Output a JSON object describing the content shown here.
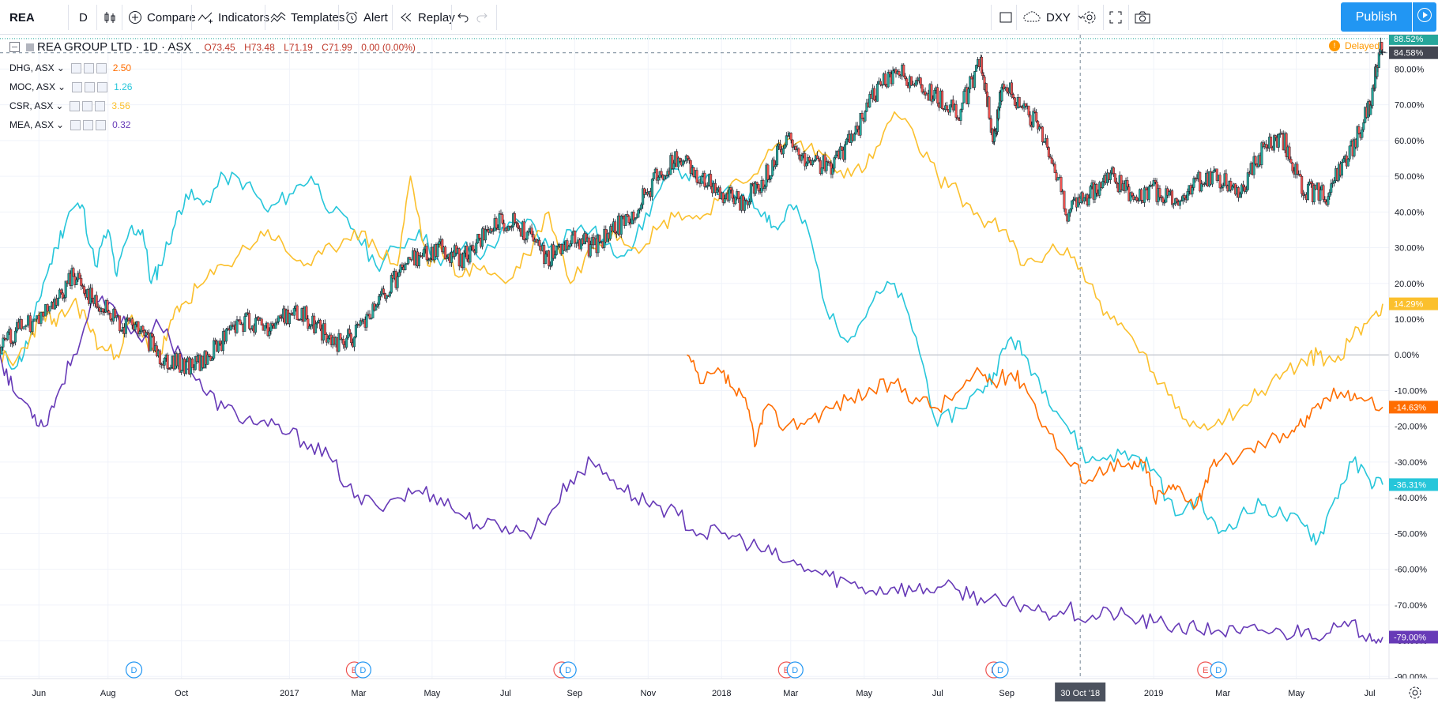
{
  "toolbar": {
    "symbol": "REA",
    "interval": "D",
    "compare": "Compare",
    "indicators": "Indicators",
    "templates": "Templates",
    "alert": "Alert",
    "replay": "Replay",
    "compare_symbol": "DXY",
    "publish": "Publish"
  },
  "legend": {
    "main_title": "REA GROUP LTD · 1D · ASX",
    "open": "O73.45",
    "high": "H73.48",
    "low": "L71.19",
    "close": "C71.99",
    "change": "0.00 (0.00%)",
    "delayed": "Delayed",
    "series": [
      {
        "label": "DHG, ASX",
        "value": "2.50",
        "color": "#ff6d00"
      },
      {
        "label": "MOC, ASX",
        "value": "1.26",
        "color": "#26c6da"
      },
      {
        "label": "CSR, ASX",
        "value": "3.56",
        "color": "#fbc02d"
      },
      {
        "label": "MEA, ASX",
        "value": "0.32",
        "color": "#673ab7"
      }
    ]
  },
  "crosshair_date": "30 Oct '18",
  "colors": {
    "up": "#26a69a",
    "down": "#ef5350",
    "dhg": "#ff6d00",
    "moc": "#26c6da",
    "csr": "#fbc02d",
    "mea": "#673ab7",
    "accent": "#2196f3"
  },
  "chart_data": {
    "type": "line",
    "xlabel": "",
    "ylabel": "",
    "ylim": [
      -90,
      90
    ],
    "y_ticks": [
      80,
      70,
      60,
      50,
      40,
      30,
      20,
      10,
      0,
      -10,
      -20,
      -30,
      -40,
      -50,
      -60,
      -70,
      -80,
      -90
    ],
    "y_tick_labels": [
      "80.00%",
      "70.00%",
      "60.00%",
      "50.00%",
      "40.00%",
      "30.00%",
      "20.00%",
      "10.00%",
      "0.00%",
      "-10.00%",
      "-20.00%",
      "-30.00%",
      "-40.00%",
      "-50.00%",
      "-60.00%",
      "-70.00%",
      "-80.00%",
      "-90.00%"
    ],
    "x_range": [
      2016.33,
      2019.53
    ],
    "x_ticks": [
      {
        "label": "Jun",
        "t": 2016.42
      },
      {
        "label": "Aug",
        "t": 2016.58
      },
      {
        "label": "Oct",
        "t": 2016.75
      },
      {
        "label": "2017",
        "t": 2017.0
      },
      {
        "label": "Mar",
        "t": 2017.16
      },
      {
        "label": "May",
        "t": 2017.33
      },
      {
        "label": "Jul",
        "t": 2017.5
      },
      {
        "label": "Sep",
        "t": 2017.66
      },
      {
        "label": "Nov",
        "t": 2017.83
      },
      {
        "label": "2018",
        "t": 2018.0
      },
      {
        "label": "Mar",
        "t": 2018.16
      },
      {
        "label": "May",
        "t": 2018.33
      },
      {
        "label": "Jul",
        "t": 2018.5
      },
      {
        "label": "Sep",
        "t": 2018.66
      },
      {
        "label": "2019",
        "t": 2019.0
      },
      {
        "label": "Mar",
        "t": 2019.16
      },
      {
        "label": "May",
        "t": 2019.33
      },
      {
        "label": "Jul",
        "t": 2019.5
      }
    ],
    "crosshair_t": 2018.83,
    "crosshair_y": 84.58,
    "last_labels": [
      {
        "text": "88.52%",
        "value": 88.52,
        "color": "#26a69a"
      },
      {
        "text": "84.58%",
        "value": 84.58,
        "color": "#434651"
      },
      {
        "text": "14.29%",
        "value": 14.29,
        "color": "#fbc02d"
      },
      {
        "text": "-14.63%",
        "value": -14.63,
        "color": "#ff6d00"
      },
      {
        "text": "-36.31%",
        "value": -36.31,
        "color": "#26c6da"
      },
      {
        "text": "-79.00%",
        "value": -79.0,
        "color": "#673ab7"
      }
    ],
    "events": [
      {
        "type": "D",
        "t": 2016.64
      },
      {
        "type": "E",
        "t": 2017.15
      },
      {
        "type": "D",
        "t": 2017.17
      },
      {
        "type": "E",
        "t": 2017.63
      },
      {
        "type": "D",
        "t": 2017.645
      },
      {
        "type": "E",
        "t": 2018.15
      },
      {
        "type": "D",
        "t": 2018.17
      },
      {
        "type": "E",
        "t": 2018.63
      },
      {
        "type": "D",
        "t": 2018.645
      },
      {
        "type": "E",
        "t": 2019.12
      },
      {
        "type": "D",
        "t": 2019.15
      }
    ],
    "series": [
      {
        "name": "REA",
        "kind": "candles",
        "x": [
          2016.33,
          2016.38,
          2016.45,
          2016.5,
          2016.55,
          2016.6,
          2016.65,
          2016.7,
          2016.75,
          2016.8,
          2016.85,
          2016.9,
          2016.95,
          2017.0,
          2017.05,
          2017.1,
          2017.15,
          2017.2,
          2017.25,
          2017.3,
          2017.35,
          2017.4,
          2017.45,
          2017.5,
          2017.55,
          2017.6,
          2017.65,
          2017.7,
          2017.75,
          2017.8,
          2017.85,
          2017.9,
          2017.95,
          2018.0,
          2018.05,
          2018.1,
          2018.15,
          2018.2,
          2018.25,
          2018.3,
          2018.35,
          2018.4,
          2018.45,
          2018.5,
          2018.55,
          2018.6,
          2018.63,
          2018.65,
          2018.7,
          2018.75,
          2018.8,
          2018.85,
          2018.9,
          2018.95,
          2019.0,
          2019.05,
          2019.1,
          2019.15,
          2019.2,
          2019.25,
          2019.3,
          2019.35,
          2019.4,
          2019.45,
          2019.5,
          2019.53
        ],
        "y": [
          2,
          8,
          12,
          23,
          15,
          10,
          7,
          0,
          -3,
          -2,
          5,
          10,
          8,
          12,
          10,
          3,
          5,
          13,
          22,
          28,
          30,
          27,
          33,
          38,
          34,
          27,
          33,
          30,
          35,
          40,
          50,
          55,
          50,
          45,
          43,
          50,
          60,
          55,
          52,
          60,
          72,
          80,
          75,
          72,
          68,
          82,
          60,
          75,
          70,
          60,
          40,
          45,
          50,
          45,
          46,
          43,
          48,
          50,
          45,
          57,
          60,
          46,
          45,
          55,
          70,
          88.52
        ]
      },
      {
        "name": "MOC",
        "kind": "line",
        "color": "#26c6da",
        "x": [
          2016.33,
          2016.37,
          2016.4,
          2016.43,
          2016.46,
          2016.49,
          2016.52,
          2016.55,
          2016.58,
          2016.6,
          2016.63,
          2016.66,
          2016.68,
          2016.7,
          2016.73,
          2016.76,
          2016.8,
          2016.85,
          2016.9,
          2016.95,
          2017.0,
          2017.05,
          2017.1,
          2017.15,
          2017.2,
          2017.25,
          2017.3,
          2017.35,
          2017.4,
          2017.45,
          2017.5,
          2017.55,
          2017.6,
          2017.65,
          2017.7,
          2017.75,
          2017.8,
          2017.85,
          2017.9,
          2017.95,
          2018.0,
          2018.05,
          2018.1,
          2018.13,
          2018.16,
          2018.2,
          2018.25,
          2018.3,
          2018.35,
          2018.4,
          2018.45,
          2018.5,
          2018.55,
          2018.6,
          2018.63,
          2018.67,
          2018.7,
          2018.75,
          2018.8,
          2018.85,
          2018.9,
          2018.95,
          2019.0,
          2019.05,
          2019.1,
          2019.15,
          2019.2,
          2019.25,
          2019.3,
          2019.35,
          2019.38,
          2019.42,
          2019.46,
          2019.5,
          2019.53
        ],
        "y": [
          0,
          -3,
          5,
          20,
          30,
          40,
          42,
          25,
          35,
          22,
          35,
          35,
          20,
          25,
          35,
          45,
          42,
          50,
          48,
          40,
          45,
          50,
          40,
          35,
          25,
          30,
          35,
          25,
          30,
          28,
          35,
          38,
          30,
          35,
          35,
          28,
          32,
          45,
          52,
          50,
          45,
          45,
          40,
          35,
          42,
          35,
          10,
          5,
          15,
          20,
          5,
          -20,
          -15,
          -10,
          -5,
          5,
          0,
          -10,
          -20,
          -30,
          -28,
          -28,
          -32,
          -45,
          -40,
          -50,
          -45,
          -42,
          -45,
          -48,
          -52,
          -40,
          -30,
          -35,
          -36.31
        ]
      },
      {
        "name": "CSR",
        "kind": "line",
        "color": "#fbc02d",
        "x": [
          2016.33,
          2016.36,
          2016.4,
          2016.43,
          2016.46,
          2016.5,
          2016.53,
          2016.56,
          2016.6,
          2016.63,
          2016.66,
          2016.7,
          2016.73,
          2016.76,
          2016.8,
          2016.85,
          2016.9,
          2016.95,
          2017.0,
          2017.05,
          2017.1,
          2017.15,
          2017.2,
          2017.25,
          2017.28,
          2017.32,
          2017.35,
          2017.4,
          2017.45,
          2017.5,
          2017.55,
          2017.6,
          2017.65,
          2017.7,
          2017.75,
          2017.8,
          2017.85,
          2017.9,
          2017.95,
          2018.0,
          2018.05,
          2018.1,
          2018.15,
          2018.2,
          2018.25,
          2018.3,
          2018.35,
          2018.4,
          2018.45,
          2018.5,
          2018.55,
          2018.6,
          2018.65,
          2018.7,
          2018.75,
          2018.8,
          2018.85,
          2018.9,
          2018.95,
          2019.0,
          2019.05,
          2019.1,
          2019.15,
          2019.2,
          2019.25,
          2019.3,
          2019.35,
          2019.38,
          2019.42,
          2019.46,
          2019.5,
          2019.53
        ],
        "y": [
          0,
          -3,
          5,
          12,
          8,
          15,
          10,
          2,
          0,
          10,
          5,
          0,
          10,
          15,
          20,
          25,
          30,
          35,
          28,
          25,
          30,
          35,
          30,
          25,
          50,
          25,
          30,
          22,
          25,
          20,
          28,
          40,
          20,
          30,
          35,
          30,
          35,
          40,
          38,
          45,
          48,
          55,
          60,
          58,
          55,
          50,
          55,
          68,
          60,
          50,
          45,
          38,
          35,
          25,
          28,
          30,
          20,
          10,
          5,
          -5,
          -15,
          -20,
          -18,
          -15,
          -10,
          -5,
          -2,
          0,
          -2,
          5,
          10,
          14.29
        ]
      },
      {
        "name": "DHG",
        "kind": "line",
        "color": "#ff6d00",
        "x": [
          2017.92,
          2017.95,
          2018.0,
          2018.03,
          2018.06,
          2018.08,
          2018.1,
          2018.15,
          2018.2,
          2018.25,
          2018.3,
          2018.35,
          2018.4,
          2018.45,
          2018.5,
          2018.55,
          2018.6,
          2018.63,
          2018.67,
          2018.7,
          2018.75,
          2018.8,
          2018.85,
          2018.9,
          2018.95,
          2018.98,
          2019.0,
          2019.03,
          2019.06,
          2019.1,
          2019.12,
          2019.15,
          2019.2,
          2019.25,
          2019.3,
          2019.33,
          2019.36,
          2019.4,
          2019.45,
          2019.48,
          2019.53
        ],
        "y": [
          0,
          -8,
          -5,
          -10,
          -15,
          -25,
          -15,
          -20,
          -18,
          -15,
          -12,
          -10,
          -8,
          -12,
          -15,
          -10,
          -5,
          -8,
          -5,
          -8,
          -20,
          -30,
          -35,
          -30,
          -32,
          -30,
          -40,
          -38,
          -37,
          -42,
          -35,
          -30,
          -28,
          -25,
          -22,
          -20,
          -18,
          -12,
          -10,
          -12,
          -14.63
        ]
      },
      {
        "name": "MEA",
        "kind": "line",
        "color": "#673ab7",
        "x": [
          2016.33,
          2016.36,
          2016.4,
          2016.43,
          2016.46,
          2016.5,
          2016.55,
          2016.6,
          2016.65,
          2016.7,
          2016.75,
          2016.8,
          2016.85,
          2016.9,
          2016.95,
          2017.0,
          2017.05,
          2017.1,
          2017.15,
          2017.2,
          2017.25,
          2017.3,
          2017.35,
          2017.4,
          2017.45,
          2017.5,
          2017.55,
          2017.6,
          2017.65,
          2017.7,
          2017.75,
          2017.8,
          2017.85,
          2017.9,
          2017.95,
          2018.0,
          2018.05,
          2018.1,
          2018.15,
          2018.2,
          2018.25,
          2018.3,
          2018.35,
          2018.4,
          2018.45,
          2018.5,
          2018.55,
          2018.6,
          2018.65,
          2018.7,
          2018.75,
          2018.8,
          2018.85,
          2018.9,
          2018.95,
          2019.0,
          2019.05,
          2019.1,
          2019.15,
          2019.2,
          2019.25,
          2019.3,
          2019.35,
          2019.4,
          2019.45,
          2019.5,
          2019.53
        ],
        "y": [
          0,
          -10,
          -15,
          -20,
          -12,
          0,
          15,
          12,
          5,
          8,
          0,
          -10,
          -15,
          -18,
          -20,
          -22,
          -25,
          -30,
          -40,
          -42,
          -40,
          -38,
          -40,
          -45,
          -48,
          -48,
          -50,
          -45,
          -35,
          -30,
          -35,
          -40,
          -42,
          -45,
          -50,
          -50,
          -52,
          -55,
          -58,
          -60,
          -62,
          -64,
          -66,
          -65,
          -66,
          -65,
          -66,
          -68,
          -70,
          -70,
          -72,
          -71,
          -74,
          -72,
          -74,
          -75,
          -76,
          -77,
          -77,
          -78,
          -77,
          -78,
          -77,
          -78,
          -76,
          -78,
          -79
        ]
      }
    ]
  }
}
